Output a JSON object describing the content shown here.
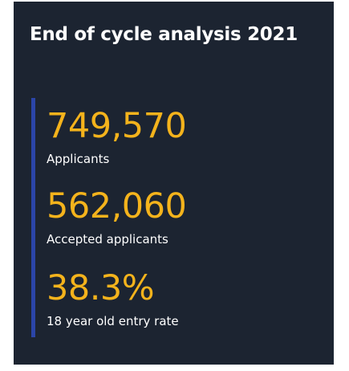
{
  "card": {
    "title": "End of cycle analysis 2021",
    "background_color": "#1c2431",
    "accent_color": "#2b45a8",
    "value_color": "#f4b31c"
  },
  "stats": [
    {
      "value": "749,570",
      "label": "Applicants"
    },
    {
      "value": "562,060",
      "label": "Accepted applicants"
    },
    {
      "value": "38.3%",
      "label": "18 year old entry rate"
    }
  ]
}
